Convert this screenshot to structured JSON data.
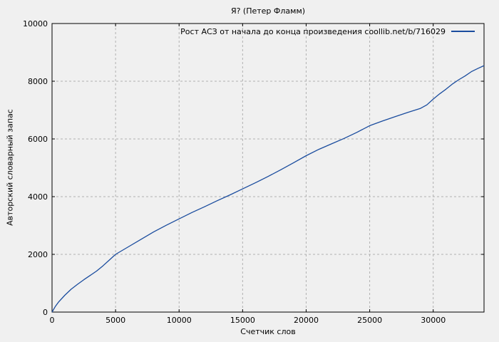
{
  "chart_data": {
    "type": "line",
    "title": "Я? (Петер Фламм)",
    "xlabel": "Счетчик слов",
    "ylabel": "Авторский словарный запас",
    "xlim": [
      0,
      34000
    ],
    "ylim": [
      0,
      10000
    ],
    "xticks": [
      0,
      5000,
      10000,
      15000,
      20000,
      25000,
      30000
    ],
    "yticks": [
      0,
      2000,
      4000,
      6000,
      8000,
      10000
    ],
    "grid": true,
    "legend_position": "top-right-inside",
    "colors": {
      "line": "#1a4c9e",
      "grid": "#b0b0b0",
      "border": "#000000",
      "background": "#f0f0f0",
      "text": "#000000"
    },
    "series": [
      {
        "name": "Рост АСЗ от начала до конца произведения coollib.net/b/716029",
        "color": "#1a4c9e",
        "x": [
          0,
          250,
          500,
          1000,
          1500,
          2000,
          2500,
          3000,
          3500,
          4000,
          4500,
          5000,
          6000,
          7000,
          8000,
          9000,
          10000,
          11000,
          12000,
          13000,
          14000,
          15000,
          16000,
          17000,
          18000,
          19000,
          20000,
          21000,
          22000,
          23000,
          24000,
          25000,
          26000,
          27000,
          28000,
          29000,
          29500,
          30000,
          30500,
          31000,
          31500,
          32000,
          32500,
          33000,
          33500,
          34000
        ],
        "y": [
          0,
          190,
          340,
          580,
          790,
          960,
          1120,
          1270,
          1420,
          1600,
          1800,
          2000,
          2260,
          2520,
          2780,
          3010,
          3230,
          3450,
          3650,
          3860,
          4060,
          4270,
          4480,
          4700,
          4930,
          5170,
          5420,
          5640,
          5830,
          6020,
          6230,
          6460,
          6620,
          6770,
          6920,
          7060,
          7180,
          7380,
          7560,
          7720,
          7900,
          8050,
          8180,
          8330,
          8440,
          8540
        ]
      }
    ]
  }
}
